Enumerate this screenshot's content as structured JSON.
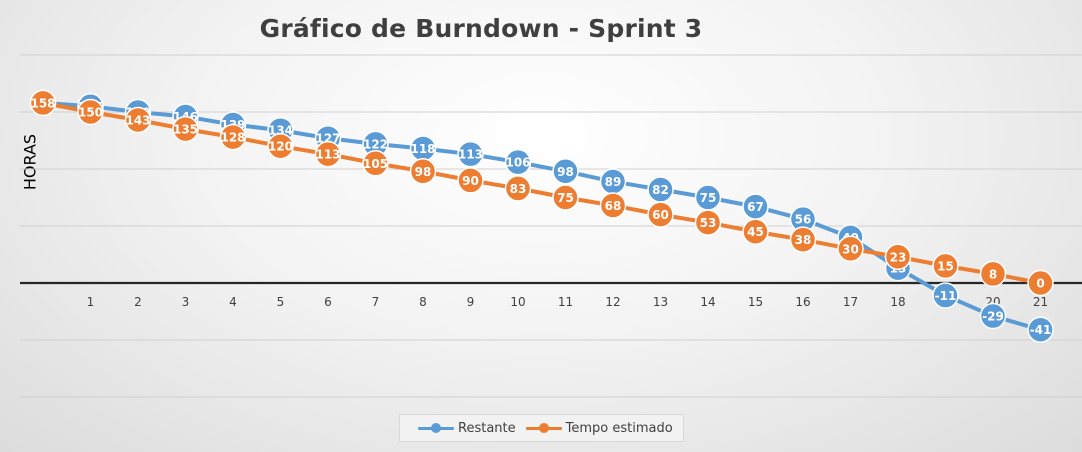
{
  "chart_data": {
    "type": "line",
    "title": "Gráfico de Burndown - Sprint 3",
    "xlabel": "",
    "ylabel": "HORAS",
    "x": [
      0,
      1,
      2,
      3,
      4,
      5,
      6,
      7,
      8,
      9,
      10,
      11,
      12,
      13,
      14,
      15,
      16,
      17,
      18,
      19,
      20,
      21
    ],
    "x_tick_labels": [
      "1",
      "2",
      "3",
      "4",
      "5",
      "6",
      "7",
      "8",
      "9",
      "10",
      "11",
      "12",
      "13",
      "14",
      "15",
      "16",
      "17",
      "18",
      "19",
      "20",
      "21"
    ],
    "ylim": [
      -100,
      200
    ],
    "grid": true,
    "legend_position": "bottom",
    "series": [
      {
        "name": "Restante",
        "color": "#5b9bd5",
        "values": [
          158,
          155,
          150,
          146,
          139,
          134,
          127,
          122,
          118,
          113,
          106,
          98,
          89,
          82,
          75,
          67,
          56,
          40,
          13,
          -11,
          -29,
          -41
        ]
      },
      {
        "name": "Tempo estimado",
        "color": "#ed7d31",
        "values": [
          158,
          150,
          143,
          135,
          128,
          120,
          113,
          105,
          98,
          90,
          83,
          75,
          68,
          60,
          53,
          45,
          38,
          30,
          23,
          15,
          8,
          0
        ]
      }
    ]
  }
}
